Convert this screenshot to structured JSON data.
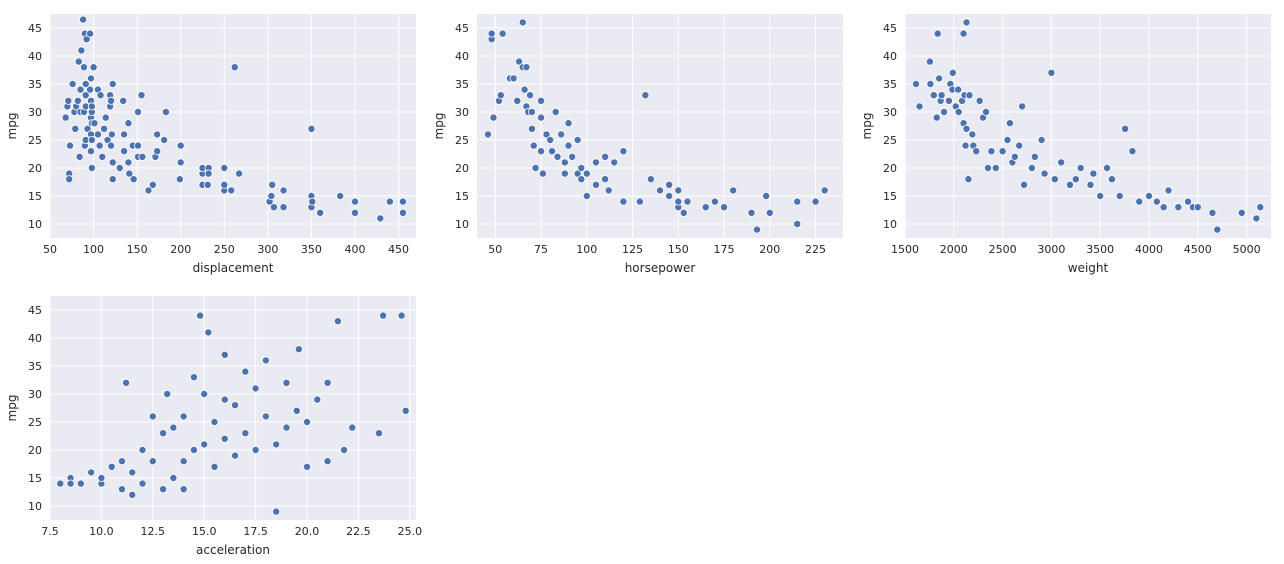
{
  "figure": {
    "background": "#ffffff",
    "panel_background": "#eaeaf2",
    "grid_color": "#ffffff",
    "marker_color": "#4c72b0",
    "marker_edge": "#ffffff"
  },
  "chart_data": [
    {
      "type": "scatter",
      "xlabel": "displacement",
      "ylabel": "mpg",
      "xlim": [
        50,
        470
      ],
      "ylim": [
        7.5,
        47.5
      ],
      "xticks": [
        50,
        100,
        150,
        200,
        250,
        300,
        350,
        400,
        450
      ],
      "yticks": [
        10,
        15,
        20,
        25,
        30,
        35,
        40,
        45
      ],
      "grid": true,
      "points": [
        [
          68,
          29
        ],
        [
          70,
          31
        ],
        [
          71,
          32
        ],
        [
          72,
          19
        ],
        [
          72,
          18
        ],
        [
          73,
          24
        ],
        [
          76,
          35
        ],
        [
          78,
          30
        ],
        [
          79,
          27
        ],
        [
          80,
          31
        ],
        [
          82,
          32
        ],
        [
          83,
          39
        ],
        [
          84,
          22
        ],
        [
          85,
          30
        ],
        [
          85,
          34
        ],
        [
          86,
          41
        ],
        [
          88,
          46.5
        ],
        [
          89,
          30
        ],
        [
          89,
          38
        ],
        [
          90,
          24
        ],
        [
          90,
          44
        ],
        [
          91,
          25
        ],
        [
          91,
          31
        ],
        [
          91,
          33
        ],
        [
          91,
          35
        ],
        [
          92,
          43
        ],
        [
          93,
          27
        ],
        [
          96,
          44
        ],
        [
          96,
          34
        ],
        [
          97,
          26
        ],
        [
          97,
          29
        ],
        [
          97,
          32
        ],
        [
          97,
          36
        ],
        [
          97,
          23
        ],
        [
          98,
          20
        ],
        [
          98,
          25
        ],
        [
          98,
          28
        ],
        [
          98,
          30
        ],
        [
          98,
          31
        ],
        [
          100,
          38
        ],
        [
          101,
          28
        ],
        [
          105,
          26
        ],
        [
          105,
          34
        ],
        [
          107,
          24
        ],
        [
          108,
          33
        ],
        [
          110,
          22
        ],
        [
          112,
          27
        ],
        [
          114,
          29
        ],
        [
          116,
          25
        ],
        [
          119,
          31
        ],
        [
          119,
          33
        ],
        [
          120,
          24
        ],
        [
          120,
          32
        ],
        [
          121,
          21
        ],
        [
          121,
          26
        ],
        [
          122,
          18
        ],
        [
          122,
          21
        ],
        [
          122,
          35
        ],
        [
          130,
          20
        ],
        [
          134,
          32
        ],
        [
          135,
          23
        ],
        [
          135,
          26
        ],
        [
          140,
          28
        ],
        [
          140,
          21
        ],
        [
          141,
          19
        ],
        [
          145,
          24
        ],
        [
          146,
          18
        ],
        [
          151,
          30
        ],
        [
          151,
          24
        ],
        [
          151,
          22
        ],
        [
          155,
          33
        ],
        [
          156,
          22
        ],
        [
          163,
          16
        ],
        [
          168,
          17
        ],
        [
          171,
          22
        ],
        [
          173,
          23
        ],
        [
          173,
          26
        ],
        [
          181,
          25
        ],
        [
          183,
          30
        ],
        [
          199,
          18
        ],
        [
          200,
          21
        ],
        [
          200,
          24
        ],
        [
          225,
          17
        ],
        [
          225,
          19
        ],
        [
          225,
          20
        ],
        [
          231,
          17
        ],
        [
          232,
          20
        ],
        [
          232,
          19
        ],
        [
          250,
          16
        ],
        [
          250,
          17
        ],
        [
          250,
          20
        ],
        [
          258,
          16
        ],
        [
          262,
          38
        ],
        [
          267,
          19
        ],
        [
          302,
          14
        ],
        [
          304,
          15
        ],
        [
          305,
          17
        ],
        [
          307,
          13
        ],
        [
          318,
          13
        ],
        [
          318,
          16
        ],
        [
          350,
          13
        ],
        [
          350,
          15
        ],
        [
          350,
          27
        ],
        [
          351,
          14
        ],
        [
          360,
          12
        ],
        [
          383,
          15
        ],
        [
          400,
          12
        ],
        [
          400,
          14
        ],
        [
          429,
          11
        ],
        [
          440,
          14
        ],
        [
          455,
          12
        ],
        [
          455,
          14
        ]
      ]
    },
    {
      "type": "scatter",
      "xlabel": "horsepower",
      "ylabel": "mpg",
      "xlim": [
        40,
        240
      ],
      "ylim": [
        7.5,
        47.5
      ],
      "xticks": [
        50,
        75,
        100,
        125,
        150,
        175,
        200,
        225
      ],
      "yticks": [
        10,
        15,
        20,
        25,
        30,
        35,
        40,
        45
      ],
      "grid": true,
      "points": [
        [
          46,
          26
        ],
        [
          48,
          43
        ],
        [
          48,
          44
        ],
        [
          49,
          29
        ],
        [
          52,
          32
        ],
        [
          53,
          33
        ],
        [
          54,
          44
        ],
        [
          58,
          36
        ],
        [
          60,
          36
        ],
        [
          62,
          32
        ],
        [
          63,
          39
        ],
        [
          65,
          38
        ],
        [
          65,
          46
        ],
        [
          66,
          34
        ],
        [
          67,
          38
        ],
        [
          67,
          31
        ],
        [
          68,
          30
        ],
        [
          69,
          33
        ],
        [
          70,
          30
        ],
        [
          70,
          27
        ],
        [
          71,
          24
        ],
        [
          72,
          20
        ],
        [
          75,
          29
        ],
        [
          75,
          23
        ],
        [
          75,
          32
        ],
        [
          76,
          19
        ],
        [
          78,
          26
        ],
        [
          80,
          25
        ],
        [
          81,
          23
        ],
        [
          83,
          30
        ],
        [
          84,
          22
        ],
        [
          86,
          26
        ],
        [
          88,
          21
        ],
        [
          88,
          19
        ],
        [
          90,
          24
        ],
        [
          90,
          28
        ],
        [
          92,
          22
        ],
        [
          95,
          19
        ],
        [
          95,
          25
        ],
        [
          97,
          18
        ],
        [
          97,
          20
        ],
        [
          100,
          15
        ],
        [
          100,
          19
        ],
        [
          105,
          17
        ],
        [
          105,
          21
        ],
        [
          110,
          22
        ],
        [
          110,
          18
        ],
        [
          112,
          16
        ],
        [
          115,
          21
        ],
        [
          120,
          23
        ],
        [
          120,
          14
        ],
        [
          129,
          14
        ],
        [
          132,
          33
        ],
        [
          135,
          18
        ],
        [
          140,
          16
        ],
        [
          145,
          15
        ],
        [
          145,
          17
        ],
        [
          150,
          13
        ],
        [
          150,
          14
        ],
        [
          150,
          16
        ],
        [
          153,
          12
        ],
        [
          155,
          14
        ],
        [
          165,
          13
        ],
        [
          170,
          14
        ],
        [
          175,
          13
        ],
        [
          180,
          16
        ],
        [
          190,
          12
        ],
        [
          193,
          9
        ],
        [
          198,
          15
        ],
        [
          200,
          12
        ],
        [
          215,
          10
        ],
        [
          215,
          14
        ],
        [
          225,
          14
        ],
        [
          230,
          16
        ]
      ]
    },
    {
      "type": "scatter",
      "xlabel": "weight",
      "ylabel": "mpg",
      "xlim": [
        1500,
        5250
      ],
      "ylim": [
        7.5,
        47.5
      ],
      "xticks": [
        1500,
        2000,
        2500,
        3000,
        3500,
        4000,
        4500,
        5000
      ],
      "yticks": [
        10,
        15,
        20,
        25,
        30,
        35,
        40,
        45
      ],
      "grid": true,
      "points": [
        [
          1613,
          35
        ],
        [
          1649,
          31
        ],
        [
          1755,
          39
        ],
        [
          1760,
          35
        ],
        [
          1795,
          33
        ],
        [
          1825,
          29
        ],
        [
          1835,
          44
        ],
        [
          1850,
          36
        ],
        [
          1865,
          32
        ],
        [
          1875,
          33
        ],
        [
          1900,
          30
        ],
        [
          1950,
          32
        ],
        [
          1965,
          35
        ],
        [
          1985,
          34
        ],
        [
          1990,
          37
        ],
        [
          2020,
          31
        ],
        [
          2045,
          34
        ],
        [
          2050,
          30
        ],
        [
          2085,
          32
        ],
        [
          2100,
          28
        ],
        [
          2100,
          44
        ],
        [
          2110,
          33
        ],
        [
          2120,
          24
        ],
        [
          2130,
          27
        ],
        [
          2130,
          46
        ],
        [
          2150,
          18
        ],
        [
          2160,
          33
        ],
        [
          2190,
          26
        ],
        [
          2200,
          24
        ],
        [
          2230,
          23
        ],
        [
          2265,
          32
        ],
        [
          2300,
          29
        ],
        [
          2330,
          30
        ],
        [
          2350,
          20
        ],
        [
          2385,
          23
        ],
        [
          2430,
          20
        ],
        [
          2500,
          23
        ],
        [
          2550,
          25
        ],
        [
          2575,
          28
        ],
        [
          2600,
          21
        ],
        [
          2625,
          22
        ],
        [
          2670,
          24
        ],
        [
          2700,
          31
        ],
        [
          2720,
          17
        ],
        [
          2800,
          20
        ],
        [
          2830,
          22
        ],
        [
          2900,
          25
        ],
        [
          2930,
          19
        ],
        [
          3000,
          37
        ],
        [
          3035,
          18
        ],
        [
          3100,
          21
        ],
        [
          3190,
          17
        ],
        [
          3250,
          18
        ],
        [
          3300,
          20
        ],
        [
          3400,
          17
        ],
        [
          3430,
          19
        ],
        [
          3500,
          15
        ],
        [
          3570,
          20
        ],
        [
          3620,
          18
        ],
        [
          3700,
          15
        ],
        [
          3755,
          27
        ],
        [
          3830,
          23
        ],
        [
          3900,
          14
        ],
        [
          4000,
          15
        ],
        [
          4080,
          14
        ],
        [
          4150,
          13
        ],
        [
          4200,
          16
        ],
        [
          4300,
          13
        ],
        [
          4400,
          14
        ],
        [
          4450,
          13
        ],
        [
          4500,
          13
        ],
        [
          4650,
          12
        ],
        [
          4700,
          9
        ],
        [
          4950,
          12
        ],
        [
          5100,
          11
        ],
        [
          5140,
          13
        ]
      ]
    },
    {
      "type": "scatter",
      "xlabel": "acceleration",
      "ylabel": "mpg",
      "xlim": [
        7.5,
        25.3
      ],
      "ylim": [
        7.5,
        47.5
      ],
      "xticks": [
        7.5,
        10.0,
        12.5,
        15.0,
        17.5,
        20.0,
        22.5,
        25.0
      ],
      "xtick_labels": [
        "7.5",
        "10.0",
        "12.5",
        "15.0",
        "17.5",
        "20.0",
        "22.5",
        "25.0"
      ],
      "yticks": [
        10,
        15,
        20,
        25,
        30,
        35,
        40,
        45
      ],
      "grid": true,
      "points": [
        [
          8.0,
          14
        ],
        [
          8.5,
          15
        ],
        [
          8.5,
          14
        ],
        [
          9.0,
          14
        ],
        [
          9.5,
          16
        ],
        [
          10.0,
          14
        ],
        [
          10.0,
          15
        ],
        [
          10.5,
          17
        ],
        [
          11.0,
          13
        ],
        [
          11.0,
          18
        ],
        [
          11.2,
          32
        ],
        [
          11.5,
          12
        ],
        [
          11.5,
          16
        ],
        [
          12.0,
          14
        ],
        [
          12.0,
          20
        ],
        [
          12.5,
          18
        ],
        [
          12.5,
          26
        ],
        [
          13.0,
          13
        ],
        [
          13.0,
          23
        ],
        [
          13.2,
          30
        ],
        [
          13.5,
          15
        ],
        [
          13.5,
          24
        ],
        [
          14.0,
          18
        ],
        [
          14.0,
          26
        ],
        [
          14.0,
          13
        ],
        [
          14.5,
          20
        ],
        [
          14.5,
          33
        ],
        [
          14.8,
          44
        ],
        [
          15.0,
          21
        ],
        [
          15.0,
          30
        ],
        [
          15.2,
          41
        ],
        [
          15.5,
          25
        ],
        [
          15.5,
          17
        ],
        [
          16.0,
          22
        ],
        [
          16.0,
          37
        ],
        [
          16.0,
          29
        ],
        [
          16.5,
          19
        ],
        [
          16.5,
          28
        ],
        [
          17.0,
          23
        ],
        [
          17.0,
          34
        ],
        [
          17.5,
          20
        ],
        [
          17.5,
          31
        ],
        [
          18.0,
          26
        ],
        [
          18.0,
          36
        ],
        [
          18.5,
          21
        ],
        [
          18.5,
          9
        ],
        [
          19.0,
          32
        ],
        [
          19.0,
          24
        ],
        [
          19.5,
          27
        ],
        [
          19.6,
          38
        ],
        [
          20.0,
          25
        ],
        [
          20.0,
          17
        ],
        [
          20.5,
          29
        ],
        [
          21.0,
          18
        ],
        [
          21.0,
          32
        ],
        [
          21.5,
          43
        ],
        [
          21.8,
          20
        ],
        [
          22.2,
          24
        ],
        [
          23.5,
          23
        ],
        [
          23.7,
          44
        ],
        [
          24.6,
          44
        ],
        [
          24.8,
          27
        ]
      ]
    }
  ]
}
